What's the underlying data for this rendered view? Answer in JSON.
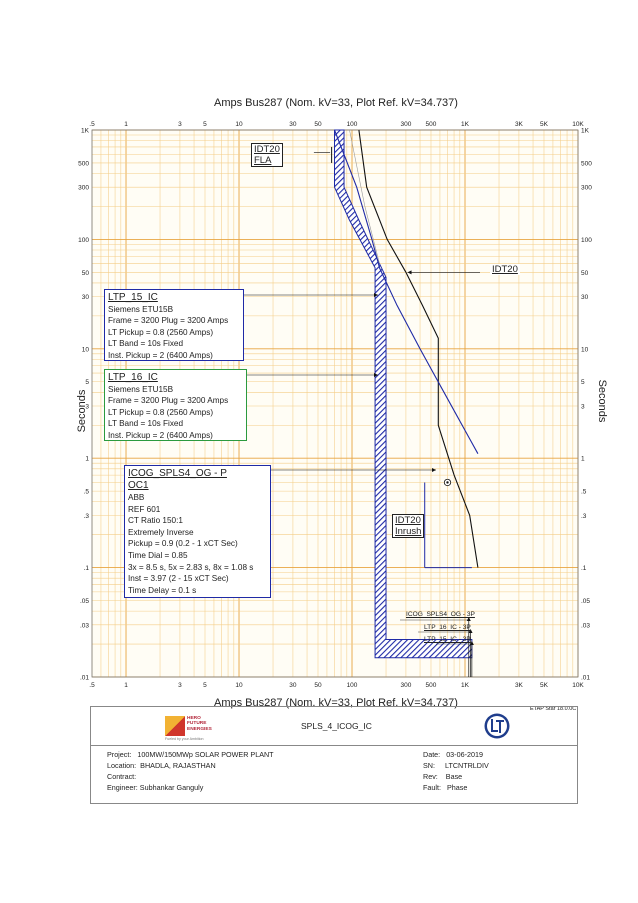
{
  "chart_data": {
    "type": "line",
    "title_top": "Amps   Bus287 (Nom. kV=33, Plot Ref. kV=34.737)",
    "title_bottom": "Amps   Bus287 (Nom. kV=33, Plot Ref. kV=34.737)",
    "ylabel_left": "Seconds",
    "ylabel_right": "Seconds",
    "x_scale": "log",
    "y_scale": "log",
    "xlim": [
      0.5,
      10000
    ],
    "ylim": [
      0.01,
      1000
    ],
    "grid": true,
    "x_ticks": [
      {
        "v": 0.5,
        "t": ".5"
      },
      {
        "v": 1,
        "t": "1"
      },
      {
        "v": 3,
        "t": "3"
      },
      {
        "v": 5,
        "t": "5"
      },
      {
        "v": 10,
        "t": "10"
      },
      {
        "v": 30,
        "t": "30"
      },
      {
        "v": 50,
        "t": "50"
      },
      {
        "v": 100,
        "t": "100"
      },
      {
        "v": 300,
        "t": "300"
      },
      {
        "v": 500,
        "t": "500"
      },
      {
        "v": 1000,
        "t": "1K"
      },
      {
        "v": 3000,
        "t": "3K"
      },
      {
        "v": 5000,
        "t": "5K"
      },
      {
        "v": 10000,
        "t": "10K"
      }
    ],
    "y_ticks": [
      {
        "v": 1000,
        "t": "1K"
      },
      {
        "v": 500,
        "t": "500"
      },
      {
        "v": 300,
        "t": "300"
      },
      {
        "v": 100,
        "t": "100"
      },
      {
        "v": 50,
        "t": "50"
      },
      {
        "v": 30,
        "t": "30"
      },
      {
        "v": 10,
        "t": "10"
      },
      {
        "v": 5,
        "t": "5"
      },
      {
        "v": 3,
        "t": "3"
      },
      {
        "v": 1,
        "t": "1"
      },
      {
        "v": 0.5,
        "t": ".5"
      },
      {
        "v": 0.3,
        "t": ".3"
      },
      {
        "v": 0.1,
        "t": ".1"
      },
      {
        "v": 0.05,
        "t": ".05"
      },
      {
        "v": 0.03,
        "t": ".03"
      },
      {
        "v": 0.01,
        "t": ".01"
      }
    ],
    "series": [
      {
        "name": "IDT20",
        "color": "#111111",
        "points": [
          [
            115,
            1000
          ],
          [
            135,
            300
          ],
          [
            205,
            100
          ],
          [
            300,
            50
          ],
          [
            420,
            25
          ],
          [
            580,
            12.5
          ],
          [
            580,
            2
          ],
          [
            800,
            0.7
          ],
          [
            1100,
            0.3
          ],
          [
            1300,
            0.1
          ]
        ]
      },
      {
        "name": "ICOG_SPLS4_OG - P",
        "color": "#1f2aa6",
        "points": [
          [
            70,
            1000
          ],
          [
            110,
            300
          ],
          [
            150,
            100
          ],
          [
            175,
            55
          ],
          [
            250,
            25
          ],
          [
            400,
            10
          ],
          [
            700,
            3.5
          ],
          [
            1100,
            1.5
          ],
          [
            1300,
            1.1
          ]
        ]
      },
      {
        "name": "LTP_15_IC",
        "color": "#999999",
        "points": [
          [
            95,
            1000
          ],
          [
            130,
            200
          ],
          [
            175,
            60
          ]
        ]
      }
    ],
    "breaker_band": {
      "color": "#1f2aa6",
      "x_left": [
        [
          70,
          1000
        ],
        [
          70,
          300
        ],
        [
          95,
          150
        ],
        [
          160,
          55
        ],
        [
          160,
          0.015
        ],
        [
          1150,
          0.015
        ]
      ],
      "x_right": [
        [
          85,
          1000
        ],
        [
          85,
          300
        ],
        [
          115,
          150
        ],
        [
          200,
          45
        ],
        [
          200,
          0.022
        ],
        [
          1150,
          0.022
        ]
      ]
    },
    "annotations": {
      "idt20_fla": {
        "lines": [
          "IDT20",
          "FLA"
        ]
      },
      "idt20": "IDT20",
      "idt20_inrush": {
        "lines": [
          "IDT20",
          "Inrush"
        ]
      },
      "ltp15": {
        "title": "LTP_15_IC",
        "lines": [
          "Siemens  ETU15B",
          "Frame = 3200 Plug = 3200 Amps",
          "LT Pickup = 0.8 (2560 Amps)",
          "LT Band = 10s Fixed",
          "Inst. Pickup = 2 (6400 Amps)"
        ],
        "border_color": "#1f2aa6"
      },
      "ltp16": {
        "title": "LTP_16_IC",
        "lines": [
          "Siemens  ETU15B",
          "Frame = 3200 Plug = 3200 Amps",
          "LT Pickup = 0.8 (2560 Amps)",
          "LT Band = 10s Fixed",
          "Inst. Pickup = 2 (6400 Amps)"
        ],
        "border_color": "#2b9a3e"
      },
      "icog": {
        "title": "ICOG_SPLS4_OG - P",
        "title2": "OC1",
        "lines": [
          "ABB",
          "REF 601",
          "CT Ratio 150:1",
          "Extremely Inverse",
          "Pickup = 0.9 (0.2 - 1  xCT Sec)",
          "Time Dial = 0.85",
          "3x = 8.5 s, 5x = 2.83 s, 8x = 1.08 s",
          "Inst = 3.97 (2 - 15  xCT Sec)",
          "Time Delay = 0.1 s"
        ],
        "border_color": "#1f2aa6"
      },
      "fault_labels": [
        "ICOG_SPLS4_OG - 3P",
        "LTP_16_IC - 3P",
        "LTP_15_IC - 3P"
      ]
    },
    "version": "ETAP Star 18.0.0C"
  },
  "footer": {
    "logo_text": [
      "HERO",
      "FUTURE",
      "ENERGIES"
    ],
    "logo_sub": "Fueled by your Ambition",
    "plot_name": "SPLS_4_ICOG_IC",
    "project_label": "Project:",
    "project_value": "100MW/150MWp SOLAR POWER PLANT",
    "location_label": "Location:",
    "location_value": "BHADLA, RAJASTHAN",
    "contract_label": "Contract:",
    "contract_value": "",
    "engineer_label": "Engineer:",
    "engineer_value": "Subhankar Ganguly",
    "date_label": "Date:",
    "date_value": "03-06-2019",
    "sn_label": "SN:",
    "sn_value": "LTCNTRLDIV",
    "rev_label": "Rev:",
    "rev_value": "Base",
    "fault_label": "Fault:",
    "fault_value": "Phase"
  }
}
